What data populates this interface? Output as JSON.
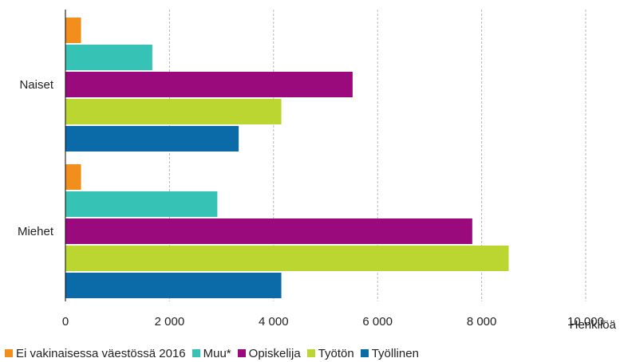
{
  "chart_data": {
    "type": "bar",
    "orientation": "horizontal",
    "categories": [
      "Naiset",
      "Miehet"
    ],
    "series": [
      {
        "name": "Ei vakinaisessa väestössä 2016",
        "color": "#f28e1c",
        "values": [
          300,
          300
        ]
      },
      {
        "name": "Muu*",
        "color": "#36c2b4",
        "values": [
          1670,
          2920
        ]
      },
      {
        "name": "Opiskelija",
        "color": "#9b0a7d",
        "values": [
          5520,
          7820
        ]
      },
      {
        "name": "Työtön",
        "color": "#bcd631",
        "values": [
          4150,
          8520
        ]
      },
      {
        "name": "Työllinen",
        "color": "#0b6aa8",
        "values": [
          3330,
          4150
        ]
      }
    ],
    "xlim": [
      0,
      10000
    ],
    "xticks": [
      0,
      2000,
      4000,
      6000,
      8000,
      10000
    ],
    "xtick_labels": [
      "0",
      "2 000",
      "4 000",
      "6 000",
      "8 000",
      "10 000"
    ],
    "xlabel": "Henkilöä",
    "ylabel": "",
    "grid": "vertical dashed",
    "legend_position": "bottom"
  }
}
